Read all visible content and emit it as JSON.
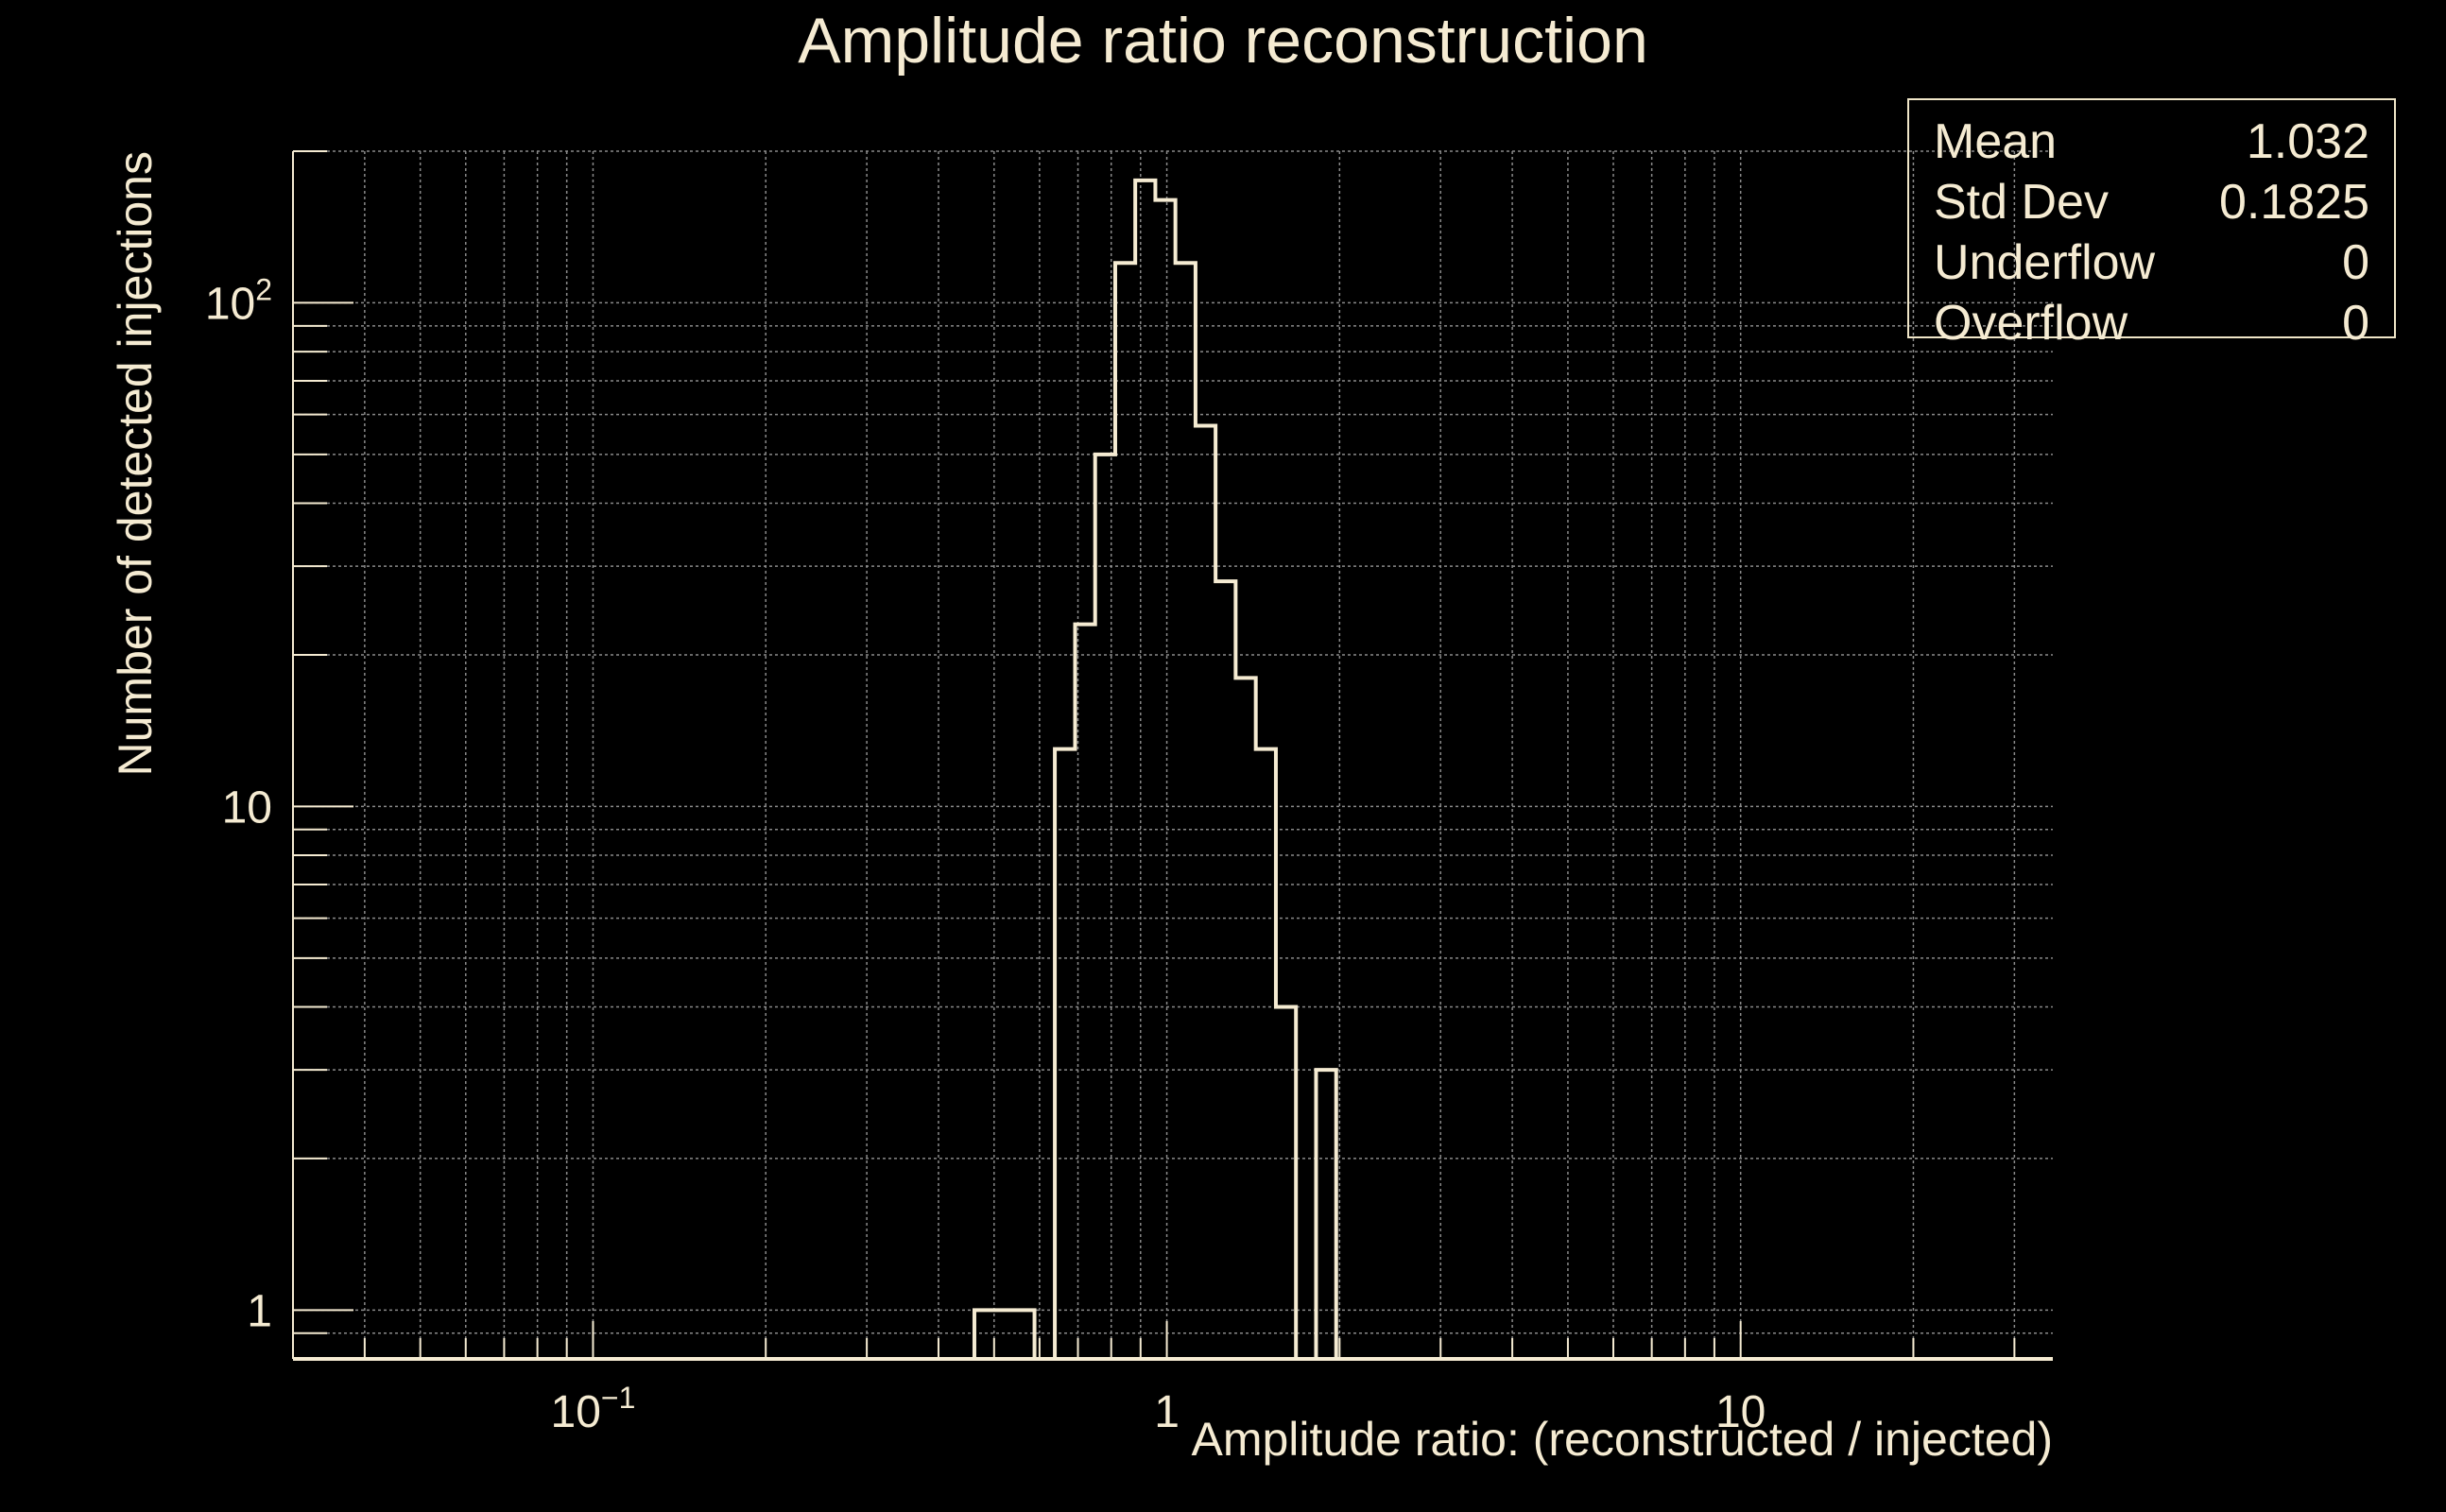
{
  "colors": {
    "background": "#000000",
    "foreground": "#f5ebd2",
    "grid": "#8a8a8a"
  },
  "chart_data": {
    "type": "histogram",
    "title": "Amplitude ratio reconstruction",
    "xlabel": "Amplitude ratio: (reconstructed / injected)",
    "ylabel": "Number of detected injections",
    "x_scale": "log",
    "y_scale": "log",
    "xlim": [
      0.03,
      35
    ],
    "ylim": [
      0.8,
      200
    ],
    "grid": true,
    "x_ticks": [
      {
        "value": 0.1,
        "base": "10",
        "exp": "−1"
      },
      {
        "value": 1,
        "base": "1",
        "exp": ""
      },
      {
        "value": 10,
        "base": "10",
        "exp": ""
      }
    ],
    "y_ticks": [
      {
        "value": 1,
        "base": "1",
        "exp": ""
      },
      {
        "value": 10,
        "base": "10",
        "exp": ""
      },
      {
        "value": 100,
        "base": "10",
        "exp": "2"
      }
    ],
    "bin_edges": [
      0.462,
      0.5,
      0.543,
      0.588,
      0.638,
      0.692,
      0.75,
      0.813,
      0.881,
      0.955,
      1.035,
      1.122,
      1.216,
      1.318,
      1.429,
      1.549,
      1.679,
      1.82,
      1.973,
      2.139
    ],
    "counts": [
      1,
      1,
      1,
      0,
      13,
      23,
      50,
      120,
      175,
      160,
      120,
      57,
      28,
      18,
      13,
      4,
      0,
      3,
      0
    ],
    "stats": [
      {
        "label": "Mean",
        "value": "1.032"
      },
      {
        "label": "Std Dev",
        "value": "0.1825"
      },
      {
        "label": "Underflow",
        "value": "0"
      },
      {
        "label": "Overflow",
        "value": "0"
      }
    ]
  }
}
